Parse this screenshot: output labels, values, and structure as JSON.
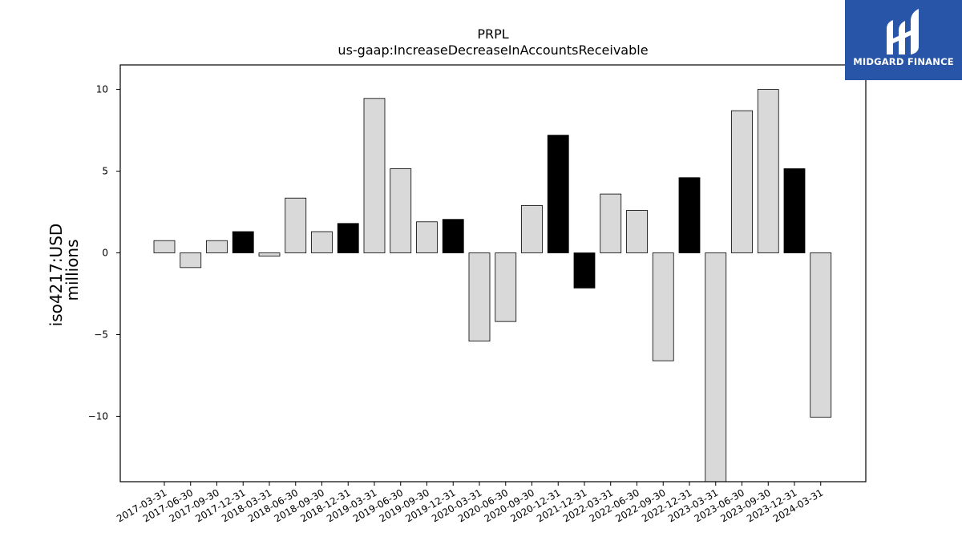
{
  "brand": {
    "name": "MIDGARD FINANCE",
    "bg_color": "#2855a8"
  },
  "chart_data": {
    "type": "bar",
    "title": "PRPL",
    "subtitle": "us-gaap:IncreaseDecreaseInAccountsReceivable",
    "ylabel": "iso4217:USD",
    "ylabel2": "millions",
    "xlabel": "",
    "ylim": [
      -14,
      11.5
    ],
    "yticks": [
      10,
      5,
      0,
      -5,
      -10
    ],
    "grid": false,
    "legend": "none",
    "colors": {
      "quarter": "#d9d9d9",
      "year_end": "#000000"
    },
    "categories": [
      "2017-03-31",
      "2017-06-30",
      "2017-09-30",
      "2017-12-31",
      "2018-03-31",
      "2018-06-30",
      "2018-09-30",
      "2018-12-31",
      "2019-03-31",
      "2019-06-30",
      "2019-09-30",
      "2019-12-31",
      "2020-03-31",
      "2020-06-30",
      "2020-09-30",
      "2020-12-31",
      "2021-12-31",
      "2022-03-31",
      "2022-06-30",
      "2022-09-30",
      "2022-12-31",
      "2023-03-31",
      "2023-06-30",
      "2023-09-30",
      "2023-12-31",
      "2024-03-31"
    ],
    "values": [
      0.75,
      -0.9,
      0.75,
      1.3,
      -0.2,
      3.35,
      1.3,
      1.8,
      9.45,
      5.15,
      1.9,
      2.05,
      -5.4,
      -4.2,
      2.9,
      7.2,
      -2.15,
      3.6,
      2.6,
      -6.6,
      4.6,
      -14.0,
      8.7,
      10.0,
      5.15,
      -10.05
    ],
    "period": [
      "Q",
      "Q",
      "Q",
      "FY",
      "Q",
      "Q",
      "Q",
      "FY",
      "Q",
      "Q",
      "Q",
      "FY",
      "Q",
      "Q",
      "Q",
      "FY",
      "FY",
      "Q",
      "Q",
      "Q",
      "FY",
      "Q",
      "Q",
      "Q",
      "FY",
      "Q"
    ]
  }
}
